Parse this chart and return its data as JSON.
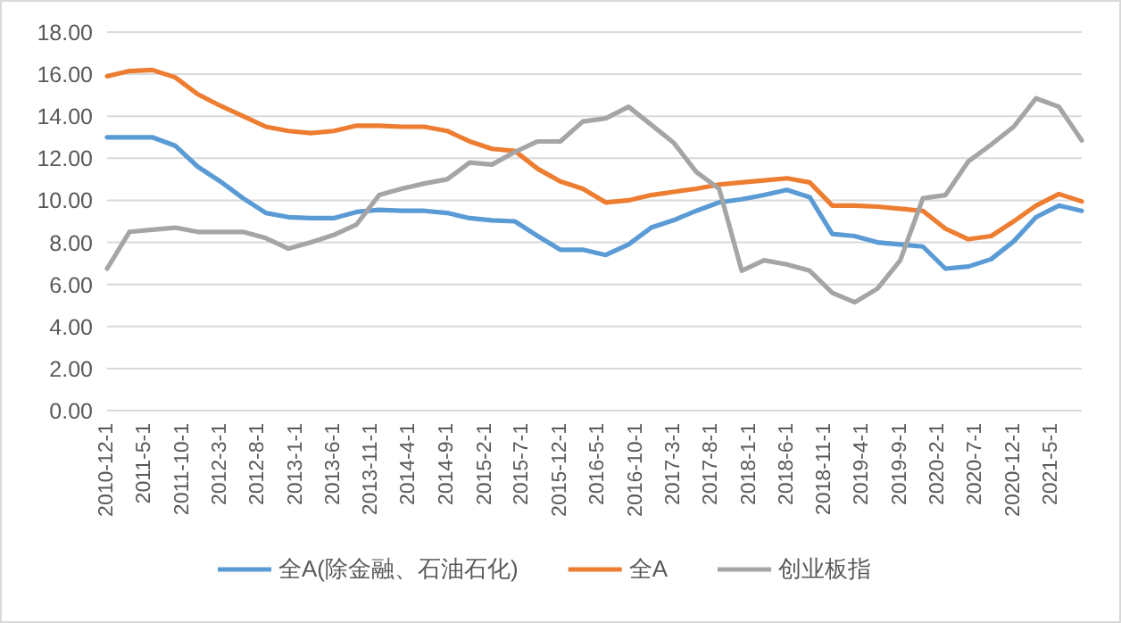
{
  "chart_data": {
    "type": "line",
    "x": [
      "2010-12-01",
      "2011-03-01",
      "2011-06-01",
      "2011-09-01",
      "2011-12-01",
      "2012-03-01",
      "2012-06-01",
      "2012-09-01",
      "2012-12-01",
      "2013-03-01",
      "2013-06-01",
      "2013-09-01",
      "2013-12-01",
      "2014-03-01",
      "2014-06-01",
      "2014-09-01",
      "2014-12-01",
      "2015-03-01",
      "2015-06-01",
      "2015-09-01",
      "2015-12-01",
      "2016-03-01",
      "2016-06-01",
      "2016-09-01",
      "2016-12-01",
      "2017-03-01",
      "2017-06-01",
      "2017-09-01",
      "2017-12-01",
      "2018-03-01",
      "2018-06-01",
      "2018-09-01",
      "2018-12-01",
      "2019-03-01",
      "2019-06-01",
      "2019-09-01",
      "2019-12-01",
      "2020-03-01",
      "2020-06-01",
      "2020-09-01",
      "2020-12-01",
      "2021-03-01",
      "2021-06-01",
      "2021-09-01"
    ],
    "series": [
      {
        "name": "全A(除金融、石油石化)",
        "color": "#5b9bd5",
        "values": [
          13.0,
          13.0,
          13.0,
          12.6,
          11.6,
          10.9,
          10.1,
          9.4,
          9.2,
          9.15,
          9.15,
          9.45,
          9.55,
          9.5,
          9.5,
          9.4,
          9.15,
          9.05,
          9.0,
          8.3,
          7.65,
          7.65,
          7.4,
          7.9,
          8.7,
          9.05,
          9.5,
          9.9,
          10.05,
          10.25,
          10.5,
          10.15,
          8.4,
          8.3,
          8.0,
          7.9,
          7.8,
          6.75,
          6.85,
          7.2,
          8.05,
          9.2,
          9.75,
          9.5
        ]
      },
      {
        "name": "全A",
        "color": "#ed7d31",
        "values": [
          15.9,
          16.15,
          16.2,
          15.85,
          15.05,
          14.5,
          14.0,
          13.5,
          13.3,
          13.2,
          13.3,
          13.55,
          13.55,
          13.5,
          13.5,
          13.3,
          12.8,
          12.45,
          12.35,
          11.5,
          10.9,
          10.55,
          9.9,
          10.0,
          10.25,
          10.4,
          10.55,
          10.75,
          10.85,
          10.95,
          11.05,
          10.85,
          9.75,
          9.75,
          9.7,
          9.6,
          9.5,
          8.65,
          8.15,
          8.3,
          9.0,
          9.75,
          10.3,
          9.95
        ]
      },
      {
        "name": "创业板指",
        "color": "#a5a5a5",
        "values": [
          6.75,
          8.5,
          8.6,
          8.7,
          8.5,
          8.5,
          8.5,
          8.2,
          7.7,
          8.0,
          8.35,
          8.85,
          10.25,
          10.55,
          10.8,
          11.0,
          11.8,
          11.7,
          12.3,
          12.8,
          12.8,
          13.75,
          13.9,
          14.45,
          13.6,
          12.75,
          11.35,
          10.55,
          6.65,
          7.15,
          6.95,
          6.65,
          5.6,
          5.15,
          5.8,
          7.15,
          10.1,
          10.25,
          11.85,
          12.65,
          13.5,
          14.85,
          14.45,
          12.85
        ]
      }
    ],
    "xlim": [
      "2010-12-01",
      "2021-09-01"
    ],
    "xticks": [
      {
        "value": "2010-12-01",
        "label": "2010-12-1"
      },
      {
        "value": "2011-05-01",
        "label": "2011-5-1"
      },
      {
        "value": "2011-10-01",
        "label": "2011-10-1"
      },
      {
        "value": "2012-03-01",
        "label": "2012-3-1"
      },
      {
        "value": "2012-08-01",
        "label": "2012-8-1"
      },
      {
        "value": "2013-01-01",
        "label": "2013-1-1"
      },
      {
        "value": "2013-06-01",
        "label": "2013-6-1"
      },
      {
        "value": "2013-11-01",
        "label": "2013-11-1"
      },
      {
        "value": "2014-04-01",
        "label": "2014-4-1"
      },
      {
        "value": "2014-09-01",
        "label": "2014-9-1"
      },
      {
        "value": "2015-02-01",
        "label": "2015-2-1"
      },
      {
        "value": "2015-07-01",
        "label": "2015-7-1"
      },
      {
        "value": "2015-12-01",
        "label": "2015-12-1"
      },
      {
        "value": "2016-05-01",
        "label": "2016-5-1"
      },
      {
        "value": "2016-10-01",
        "label": "2016-10-1"
      },
      {
        "value": "2017-03-01",
        "label": "2017-3-1"
      },
      {
        "value": "2017-08-01",
        "label": "2017-8-1"
      },
      {
        "value": "2018-01-01",
        "label": "2018-1-1"
      },
      {
        "value": "2018-06-01",
        "label": "2018-6-1"
      },
      {
        "value": "2018-11-01",
        "label": "2018-11-1"
      },
      {
        "value": "2019-04-01",
        "label": "2019-4-1"
      },
      {
        "value": "2019-09-01",
        "label": "2019-9-1"
      },
      {
        "value": "2020-02-01",
        "label": "2020-2-1"
      },
      {
        "value": "2020-07-01",
        "label": "2020-7-1"
      },
      {
        "value": "2020-12-01",
        "label": "2020-12-1"
      },
      {
        "value": "2021-05-01",
        "label": "2021-5-1"
      }
    ],
    "ylim": [
      0,
      18
    ],
    "yticks": [
      {
        "value": 0,
        "label": "0.00"
      },
      {
        "value": 2,
        "label": "2.00"
      },
      {
        "value": 4,
        "label": "4.00"
      },
      {
        "value": 6,
        "label": "6.00"
      },
      {
        "value": 8,
        "label": "8.00"
      },
      {
        "value": 10,
        "label": "10.00"
      },
      {
        "value": 12,
        "label": "12.00"
      },
      {
        "value": 14,
        "label": "14.00"
      },
      {
        "value": 16,
        "label": "16.00"
      },
      {
        "value": 18,
        "label": "18.00"
      }
    ],
    "grid": "y",
    "legend": "bottom",
    "marker": "none",
    "line_style": "solid"
  }
}
